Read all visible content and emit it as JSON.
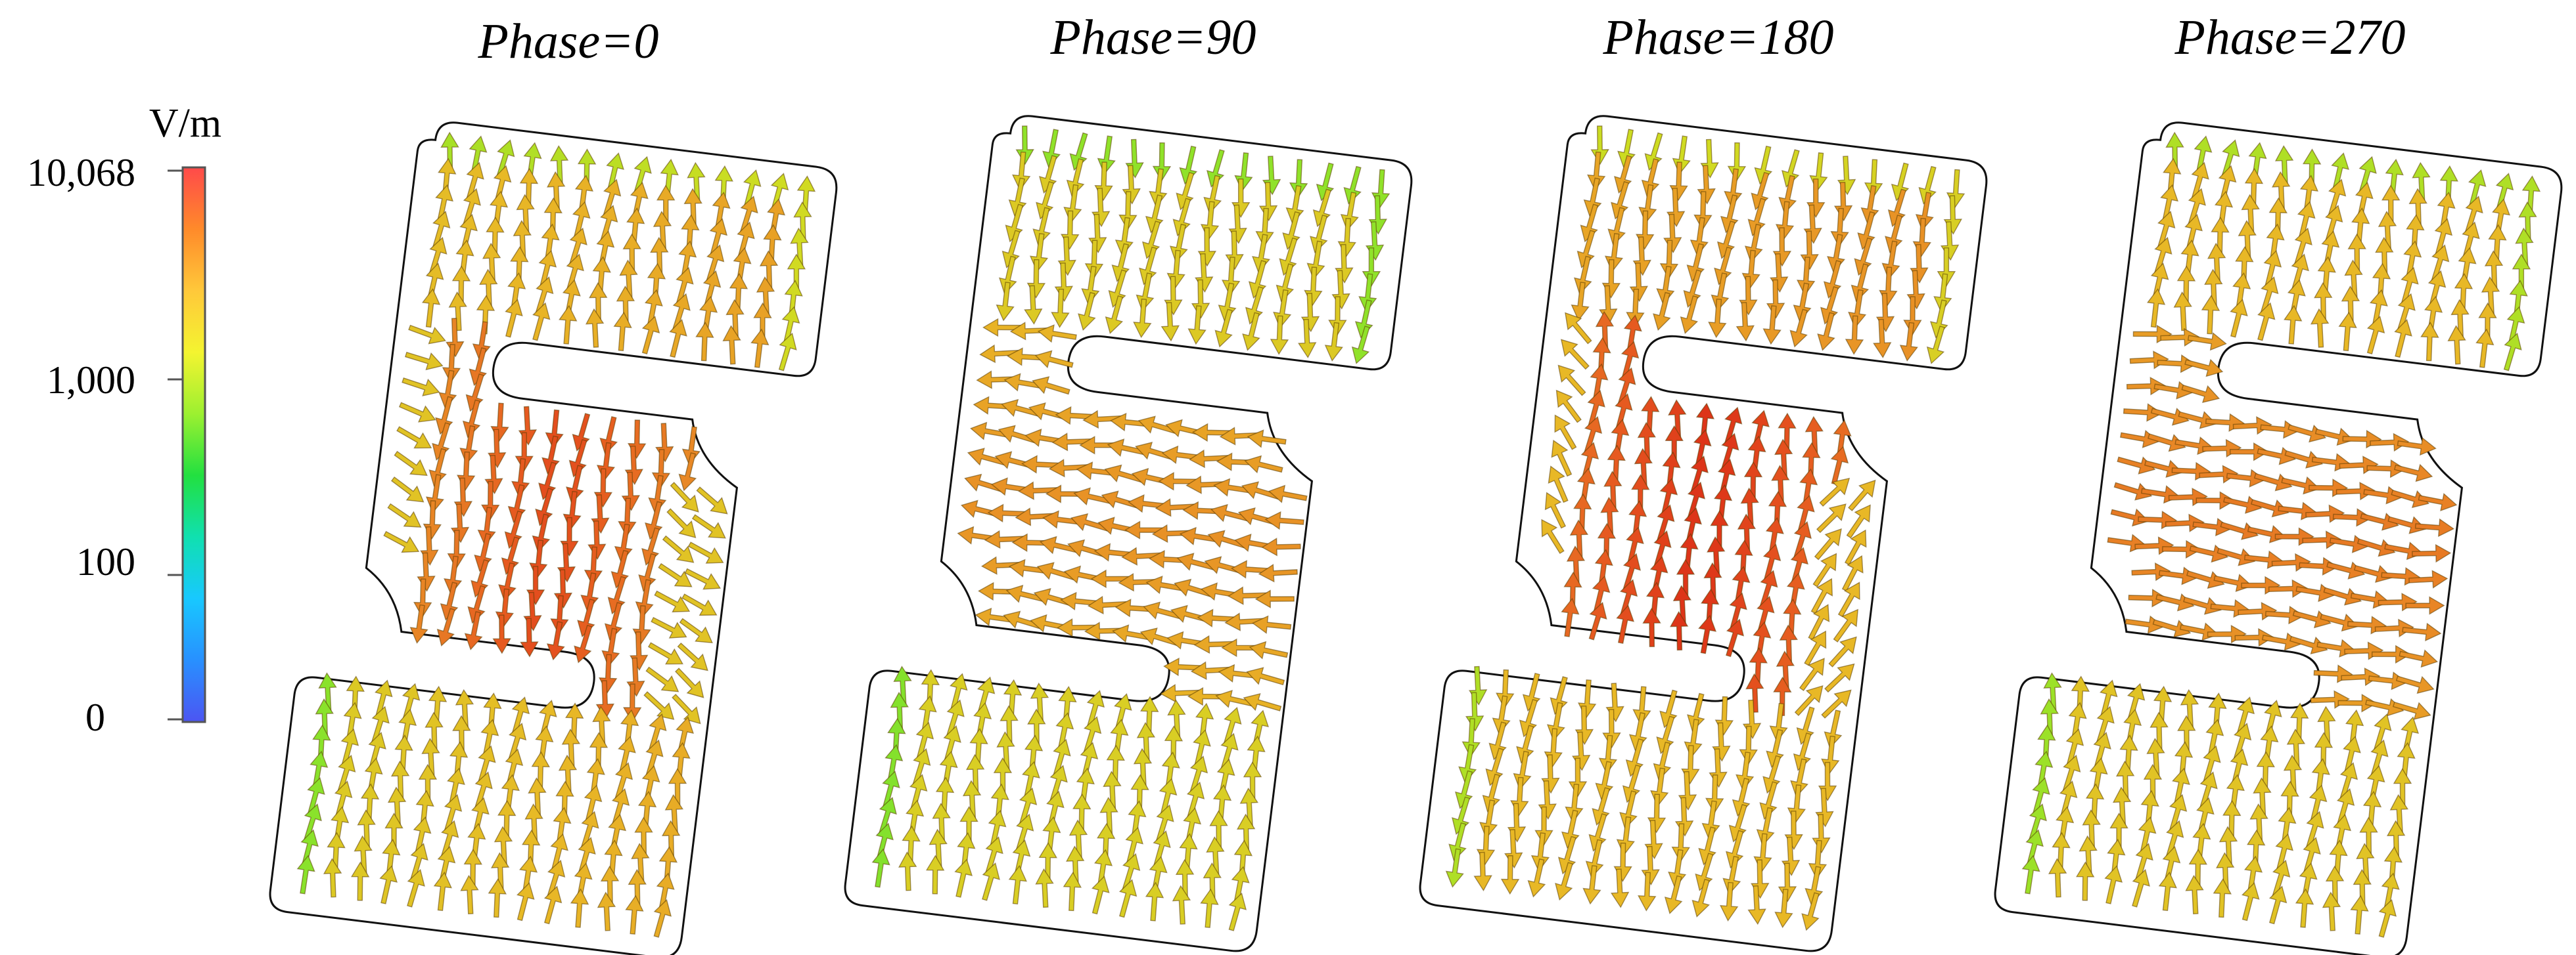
{
  "colorbar": {
    "unit": "V/m",
    "ticks": [
      {
        "label": "10,068",
        "value": 10068
      },
      {
        "label": "1,000",
        "value": 1000
      },
      {
        "label": "100",
        "value": 100
      },
      {
        "label": "0",
        "value": 0
      }
    ],
    "gradient": [
      "#ff4a4a",
      "#ff8a2a",
      "#ffc83a",
      "#f4f430",
      "#9cf030",
      "#22e040",
      "#10e0b0",
      "#18c8ff",
      "#2890ff",
      "#4c55f2"
    ]
  },
  "panels": [
    {
      "title": "Phase=0",
      "mode": "vertical-cw"
    },
    {
      "title": "Phase=90",
      "mode": "horizontal-left"
    },
    {
      "title": "Phase=180",
      "mode": "vertical-ccw"
    },
    {
      "title": "Phase=270",
      "mode": "horizontal-right"
    }
  ]
}
